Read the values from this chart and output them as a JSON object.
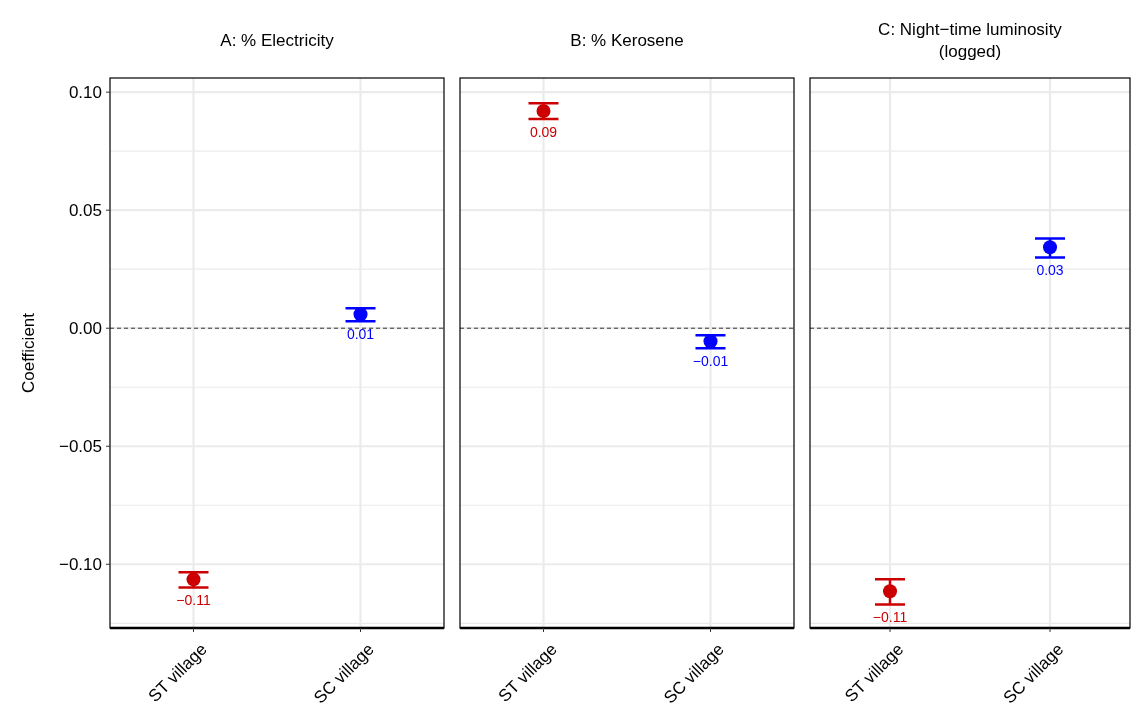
{
  "chart_data": [
    {
      "type": "scatter",
      "title": "A: % Electricity",
      "ylabel": "Coefficient",
      "categories": [
        "ST village",
        "SC village"
      ],
      "values": [
        -0.1064,
        0.0059
      ],
      "errors": [
        [
          -0.1098,
          -0.1034
        ],
        [
          0.003,
          0.0085
        ]
      ],
      "colors": [
        "#cc0000",
        "#0000ff"
      ],
      "value_labels": [
        "−0.11",
        "0.01"
      ],
      "ylim": [
        -0.127,
        0.106
      ],
      "yticks": [
        {
          "value": -0.125,
          "label": null
        },
        {
          "value": -0.1,
          "label": "−0.10"
        },
        {
          "value": -0.075,
          "label": null
        },
        {
          "value": -0.05,
          "label": "−0.05"
        },
        {
          "value": -0.025,
          "label": null
        },
        {
          "value": 0,
          "label": "0.00"
        },
        {
          "value": 0.025,
          "label": null
        },
        {
          "value": 0.05,
          "label": "0.05"
        },
        {
          "value": 0.075,
          "label": null
        },
        {
          "value": 0.1,
          "label": "0.10"
        }
      ],
      "grid": true,
      "marker": "circle",
      "ref_lines": [
        {
          "axis": "y",
          "value": 0,
          "line_style": "dashed",
          "color": "#333333"
        }
      ]
    },
    {
      "type": "scatter",
      "title": "B: % Kerosene",
      "categories": [
        "ST village",
        "SC village"
      ],
      "values": [
        0.092,
        -0.0055
      ],
      "errors": [
        [
          0.0886,
          0.0953
        ],
        [
          -0.0085,
          -0.003
        ]
      ],
      "colors": [
        "#cc0000",
        "#0000ff"
      ],
      "value_labels": [
        "0.09",
        "−0.01"
      ],
      "ylim": [
        -0.127,
        0.106
      ],
      "yticks": [
        {
          "value": -0.125,
          "label": null
        },
        -0.1,
        {
          "value": -0.075,
          "label": null
        },
        -0.05,
        {
          "value": -0.025,
          "label": null
        },
        0,
        {
          "value": 0.025,
          "label": null
        },
        0.05,
        {
          "value": 0.075,
          "label": null
        },
        0.1
      ],
      "grid": true,
      "marker": "circle",
      "tick_labels": "x",
      "ref_lines": [
        {
          "axis": "y",
          "value": 0,
          "line_style": "dashed",
          "color": "#333333"
        }
      ]
    },
    {
      "type": "scatter",
      "title": "C: Night−time luminosity\n(logged)",
      "categories": [
        "ST village",
        "SC village"
      ],
      "values": [
        -0.1114,
        0.0343
      ],
      "errors": [
        [
          -0.117,
          -0.1064
        ],
        [
          0.03,
          0.038
        ]
      ],
      "colors": [
        "#cc0000",
        "#0000ff"
      ],
      "value_labels": [
        "−0.11",
        "0.03"
      ],
      "ylim": [
        -0.127,
        0.106
      ],
      "yticks": [
        {
          "value": -0.125,
          "label": null
        },
        -0.1,
        {
          "value": -0.075,
          "label": null
        },
        -0.05,
        {
          "value": -0.025,
          "label": null
        },
        0,
        {
          "value": 0.025,
          "label": null
        },
        0.05,
        {
          "value": 0.075,
          "label": null
        },
        0.1
      ],
      "grid": true,
      "marker": "circle",
      "tick_labels": "x",
      "ref_lines": [
        {
          "axis": "y",
          "value": 0,
          "line_style": "dashed",
          "color": "#333333"
        }
      ]
    }
  ]
}
